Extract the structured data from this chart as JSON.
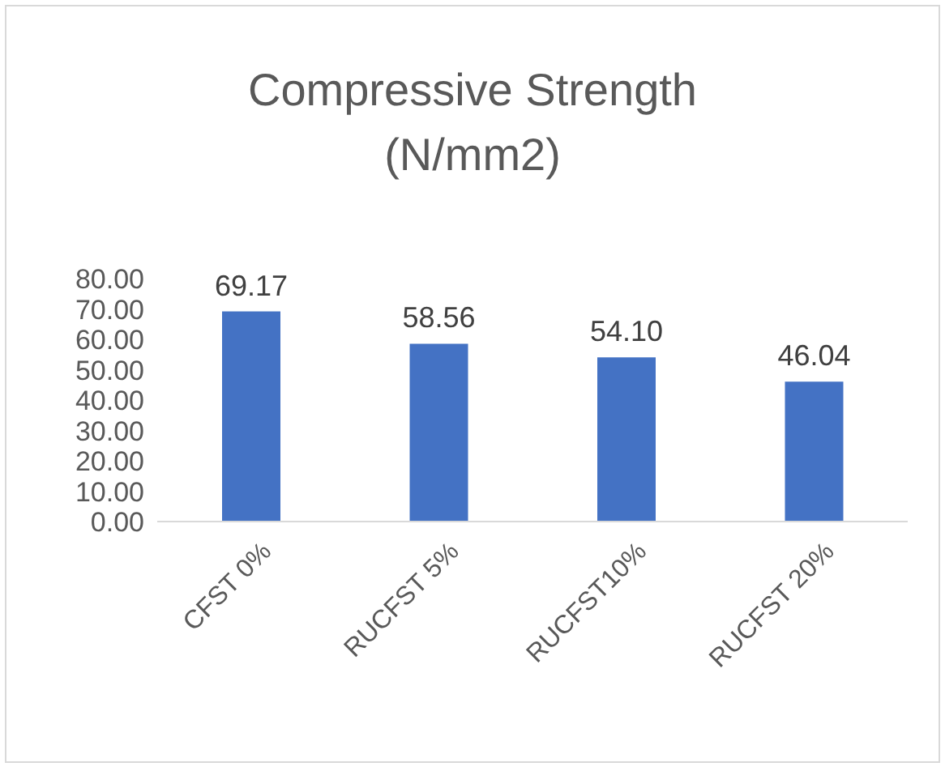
{
  "chart_data": {
    "type": "bar",
    "title": "Compressive Strength (N/mm2)",
    "categories": [
      "CFST 0%",
      "RUCFST 5%",
      "RUCFST10%",
      "RUCFST 20%"
    ],
    "values": [
      69.17,
      58.56,
      54.1,
      46.04
    ],
    "value_labels": [
      "69.17",
      "58.56",
      "54.10",
      "46.04"
    ],
    "color": "#4472c4",
    "ylim": [
      0,
      80
    ],
    "yticks": [
      {
        "value": 0,
        "label": "0.00"
      },
      {
        "value": 10,
        "label": "10.00"
      },
      {
        "value": 20,
        "label": "20.00"
      },
      {
        "value": 30,
        "label": "30.00"
      },
      {
        "value": 40,
        "label": "40.00"
      },
      {
        "value": 50,
        "label": "50.00"
      },
      {
        "value": 60,
        "label": "60.00"
      },
      {
        "value": 70,
        "label": "70.00"
      },
      {
        "value": 80,
        "label": "80.00"
      }
    ],
    "grid": false,
    "legend": false
  }
}
